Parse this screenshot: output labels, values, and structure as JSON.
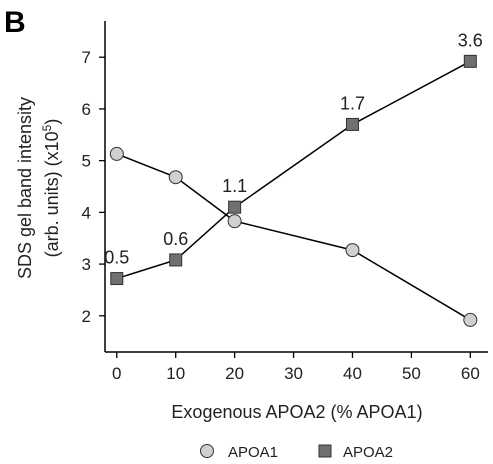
{
  "panel_label": "B",
  "chart_data": {
    "type": "line",
    "xlabel": "Exogenous APOA2 (% APOA1)",
    "ylabel_line1": "SDS gel band intensity",
    "ylabel_line2": "(arb. units) (x10",
    "ylabel_superscript": "5",
    "ylabel_close": ")",
    "xlim": [
      -2,
      63
    ],
    "ylim": [
      1.3,
      7.7
    ],
    "x_ticks": [
      0,
      10,
      20,
      30,
      40,
      50,
      60
    ],
    "y_ticks": [
      2,
      3,
      4,
      5,
      6,
      7
    ],
    "grid": false,
    "legend_position": "bottom",
    "series": [
      {
        "name": "APOA1",
        "marker": "circle",
        "color": "#d0d0d0",
        "x": [
          0,
          10,
          20,
          40,
          60
        ],
        "y": [
          5.13,
          4.68,
          3.83,
          3.27,
          1.92
        ]
      },
      {
        "name": "APOA2",
        "marker": "square",
        "color": "#707070",
        "x": [
          0,
          10,
          20,
          40,
          60
        ],
        "y": [
          2.72,
          3.08,
          4.1,
          5.7,
          6.92
        ],
        "labels": [
          "0.5",
          "0.6",
          "1.1",
          "1.7",
          "3.6"
        ]
      }
    ]
  }
}
